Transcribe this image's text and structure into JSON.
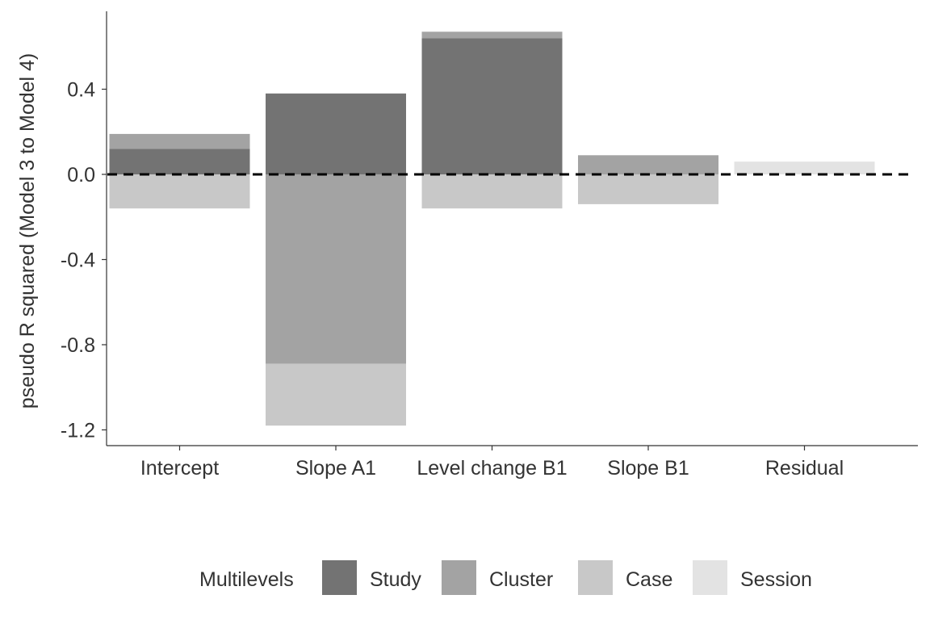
{
  "chart_data": {
    "type": "bar",
    "stacked": true,
    "categories": [
      "Intercept",
      "Slope A1",
      "Level change B1",
      "Slope B1",
      "Residual"
    ],
    "series": [
      {
        "name": "Study",
        "color": "#737373",
        "values": [
          0.12,
          0.38,
          0.64,
          0.0,
          0.0
        ]
      },
      {
        "name": "Cluster",
        "color": "#a3a3a3",
        "values": [
          0.07,
          -0.89,
          0.03,
          0.09,
          0.0
        ]
      },
      {
        "name": "Case",
        "color": "#c8c8c8",
        "values": [
          -0.16,
          -0.29,
          -0.16,
          -0.14,
          0.0
        ]
      },
      {
        "name": "Session",
        "color": "#e3e3e3",
        "values": [
          0.0,
          0.0,
          0.0,
          0.0,
          0.06
        ]
      }
    ],
    "title": "",
    "xlabel": "",
    "ylabel": "pseudo R squared (Model 3 to Model 4)",
    "ylim": [
      -1.28,
      0.78
    ],
    "yticks": [
      "0.4",
      "0.0",
      "-0.4",
      "-0.8",
      "-1.2"
    ],
    "reference_line": {
      "y": 0.0,
      "style": "dashed"
    },
    "grid": false,
    "legend": {
      "title": "Multilevels",
      "position": "bottom"
    }
  }
}
